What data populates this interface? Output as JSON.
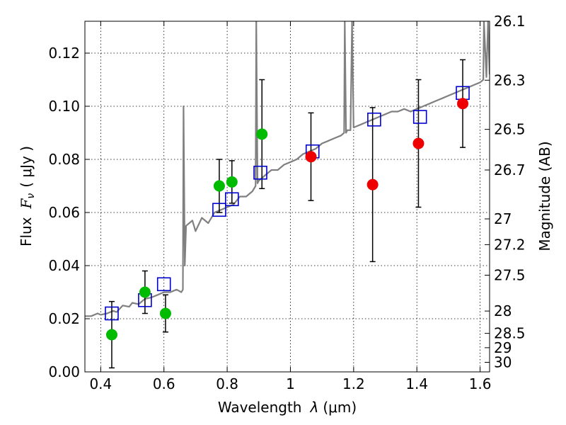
{
  "chart_data": {
    "type": "scatter",
    "xlabel": "Wavelength",
    "xlabel_symbol": "λ",
    "xlabel_unit": "(μm)",
    "ylabel": "Flux",
    "ylabel_symbol": "F",
    "ylabel_subscript": "ν",
    "ylabel_unit": "( μJy )",
    "y2label": "Magnitude (AB)",
    "xlim": [
      0.35,
      1.63
    ],
    "ylim": [
      0.0,
      0.132
    ],
    "xticks": [
      0.4,
      0.6,
      0.8,
      1.0,
      1.2,
      1.4,
      1.6
    ],
    "xtick_labels": [
      "0.4",
      "0.6",
      "0.8",
      "1",
      "1.2",
      "1.4",
      "1.6"
    ],
    "yticks": [
      0.0,
      0.02,
      0.04,
      0.06,
      0.08,
      0.1,
      0.12
    ],
    "ytick_labels": [
      "0.00",
      "0.02",
      "0.04",
      "0.06",
      "0.08",
      "0.10",
      "0.12"
    ],
    "y2ticks": [
      {
        "label": "26.1",
        "flux": 0.132
      },
      {
        "label": "26.3",
        "flux": 0.1098
      },
      {
        "label": "26.5",
        "flux": 0.0913
      },
      {
        "label": "26.7",
        "flux": 0.076
      },
      {
        "label": "27",
        "flux": 0.0576
      },
      {
        "label": "27.2",
        "flux": 0.0479
      },
      {
        "label": "27.5",
        "flux": 0.0364
      },
      {
        "label": "28",
        "flux": 0.0229
      },
      {
        "label": "28.5",
        "flux": 0.0145
      },
      {
        "label": "29",
        "flux": 0.0091
      },
      {
        "label": "30",
        "flux": 0.0036
      }
    ],
    "grid": true,
    "colors": {
      "model": "#808080",
      "model_points": "#0000cc",
      "green_points": "#00bb00",
      "red_points": "#ee0000",
      "errorbar": "#000000"
    },
    "series": [
      {
        "name": "model spectrum",
        "kind": "line",
        "points": [
          [
            0.35,
            0.021
          ],
          [
            0.37,
            0.021
          ],
          [
            0.39,
            0.022
          ],
          [
            0.4,
            0.0215
          ],
          [
            0.42,
            0.022
          ],
          [
            0.44,
            0.023
          ],
          [
            0.45,
            0.0225
          ],
          [
            0.47,
            0.025
          ],
          [
            0.49,
            0.0245
          ],
          [
            0.5,
            0.026
          ],
          [
            0.52,
            0.0255
          ],
          [
            0.54,
            0.0275
          ],
          [
            0.56,
            0.028
          ],
          [
            0.58,
            0.029
          ],
          [
            0.6,
            0.03
          ],
          [
            0.62,
            0.03
          ],
          [
            0.64,
            0.031
          ],
          [
            0.655,
            0.03
          ],
          [
            0.66,
            0.031
          ],
          [
            0.662,
            0.1
          ],
          [
            0.666,
            0.04
          ],
          [
            0.67,
            0.055
          ],
          [
            0.69,
            0.057
          ],
          [
            0.7,
            0.053
          ],
          [
            0.72,
            0.058
          ],
          [
            0.74,
            0.056
          ],
          [
            0.76,
            0.06
          ],
          [
            0.78,
            0.061
          ],
          [
            0.8,
            0.062
          ],
          [
            0.82,
            0.063
          ],
          [
            0.84,
            0.066
          ],
          [
            0.86,
            0.066
          ],
          [
            0.88,
            0.068
          ],
          [
            0.89,
            0.07
          ],
          [
            0.892,
            0.132
          ],
          [
            0.896,
            0.071
          ],
          [
            0.9,
            0.072
          ],
          [
            0.92,
            0.074
          ],
          [
            0.94,
            0.076
          ],
          [
            0.96,
            0.076
          ],
          [
            0.98,
            0.078
          ],
          [
            1.0,
            0.079
          ],
          [
            1.02,
            0.08
          ],
          [
            1.04,
            0.082
          ],
          [
            1.06,
            0.083
          ],
          [
            1.08,
            0.084
          ],
          [
            1.1,
            0.086
          ],
          [
            1.12,
            0.087
          ],
          [
            1.14,
            0.088
          ],
          [
            1.16,
            0.089
          ],
          [
            1.17,
            0.09
          ],
          [
            1.172,
            0.132
          ],
          [
            1.176,
            0.09
          ],
          [
            1.18,
            0.091
          ],
          [
            1.19,
            0.091
          ],
          [
            1.195,
            0.132
          ],
          [
            1.2,
            0.092
          ],
          [
            1.22,
            0.093
          ],
          [
            1.24,
            0.094
          ],
          [
            1.26,
            0.095
          ],
          [
            1.28,
            0.096
          ],
          [
            1.3,
            0.097
          ],
          [
            1.32,
            0.098
          ],
          [
            1.34,
            0.098
          ],
          [
            1.36,
            0.099
          ],
          [
            1.38,
            0.098
          ],
          [
            1.4,
            0.099
          ],
          [
            1.42,
            0.1
          ],
          [
            1.44,
            0.101
          ],
          [
            1.46,
            0.102
          ],
          [
            1.48,
            0.103
          ],
          [
            1.5,
            0.104
          ],
          [
            1.52,
            0.105
          ],
          [
            1.54,
            0.106
          ],
          [
            1.56,
            0.107
          ],
          [
            1.58,
            0.108
          ],
          [
            1.6,
            0.109
          ],
          [
            1.61,
            0.11
          ],
          [
            1.612,
            0.132
          ],
          [
            1.62,
            0.111
          ],
          [
            1.625,
            0.132
          ],
          [
            1.63,
            0.112
          ]
        ]
      },
      {
        "name": "model photometry",
        "kind": "open-square",
        "points": [
          {
            "x": 0.435,
            "y": 0.022
          },
          {
            "x": 0.54,
            "y": 0.027
          },
          {
            "x": 0.6,
            "y": 0.033
          },
          {
            "x": 0.775,
            "y": 0.061
          },
          {
            "x": 0.815,
            "y": 0.065
          },
          {
            "x": 0.905,
            "y": 0.075
          },
          {
            "x": 1.07,
            "y": 0.083
          },
          {
            "x": 1.265,
            "y": 0.095
          },
          {
            "x": 1.41,
            "y": 0.096
          },
          {
            "x": 1.545,
            "y": 0.105
          }
        ]
      },
      {
        "name": "observed (green)",
        "kind": "filled-circle",
        "color": "green",
        "points": [
          {
            "x": 0.435,
            "y": 0.014,
            "yerr": 0.0125
          },
          {
            "x": 0.54,
            "y": 0.03,
            "yerr": 0.008
          },
          {
            "x": 0.605,
            "y": 0.022,
            "yerr": 0.007
          },
          {
            "x": 0.775,
            "y": 0.07,
            "yerr": 0.01
          },
          {
            "x": 0.815,
            "y": 0.0715,
            "yerr": 0.008
          },
          {
            "x": 0.91,
            "y": 0.0895,
            "yerr": 0.0205
          }
        ]
      },
      {
        "name": "observed (red)",
        "kind": "filled-circle",
        "color": "red",
        "points": [
          {
            "x": 1.065,
            "y": 0.081,
            "yerr": 0.0165
          },
          {
            "x": 1.26,
            "y": 0.0705,
            "yerr": 0.029
          },
          {
            "x": 1.405,
            "y": 0.086,
            "yerr": 0.024
          },
          {
            "x": 1.545,
            "y": 0.101,
            "yerr": 0.0165
          }
        ]
      }
    ]
  }
}
